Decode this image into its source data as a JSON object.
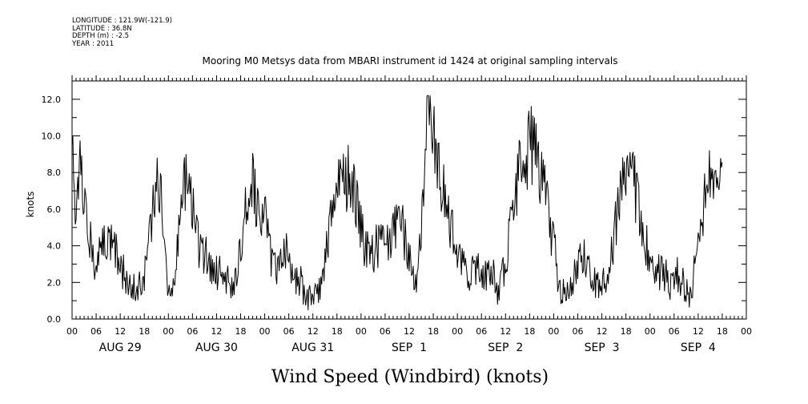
{
  "header": {
    "longitude": "LONGITUDE : 121.9W(-121.9)",
    "latitude": "LATITUDE : 36.8N",
    "depth": "DEPTH (m) : -2.5",
    "year": "YEAR : 2011"
  },
  "chart_data": {
    "type": "line",
    "title": "Mooring M0 Metsys data from MBARI instrument id 1424 at original sampling intervals",
    "ylabel": "knots",
    "xlabel": "Wind Speed (Windbird) (knots)",
    "ylim": [
      0,
      13
    ],
    "ytick_labels": [
      "0.0",
      "2.0",
      "4.0",
      "6.0",
      "8.0",
      "10.0",
      "12.0"
    ],
    "hour_tick_labels": [
      "00",
      "06",
      "12",
      "18",
      "00",
      "06",
      "12",
      "18",
      "00",
      "06",
      "12",
      "18",
      "00",
      "06",
      "12",
      "18",
      "00",
      "06",
      "12",
      "18",
      "00",
      "06",
      "12",
      "18",
      "00",
      "06",
      "12",
      "18",
      "00"
    ],
    "day_labels": [
      "AUG 29",
      "AUG 30",
      "AUG 31",
      "SEP  1",
      "SEP  2",
      "SEP  3",
      "SEP  4"
    ],
    "x_unit": "hours since 2011-08-29 00:00",
    "xlim": [
      0,
      168
    ],
    "series": [
      {
        "color": "#000000",
        "anchors": [
          [
            0,
            8.8
          ],
          [
            1,
            6.5
          ],
          [
            2,
            7.8
          ],
          [
            3,
            6.0
          ],
          [
            4,
            5.5
          ],
          [
            5,
            3.5
          ],
          [
            6,
            2.5
          ],
          [
            7,
            3.5
          ],
          [
            8,
            4.0
          ],
          [
            9,
            3.8
          ],
          [
            10,
            4.2
          ],
          [
            11,
            3.5
          ],
          [
            12,
            2.8
          ],
          [
            13,
            2.5
          ],
          [
            14,
            1.5
          ],
          [
            15,
            1.8
          ],
          [
            16,
            1.5
          ],
          [
            17,
            1.8
          ],
          [
            18,
            2.2
          ],
          [
            19,
            4.0
          ],
          [
            20,
            5.5
          ],
          [
            21,
            7.0
          ],
          [
            22,
            7.5
          ],
          [
            23,
            5.0
          ],
          [
            24,
            1.5
          ],
          [
            25,
            2.0
          ],
          [
            26,
            3.5
          ],
          [
            27,
            5.5
          ],
          [
            28,
            7.0
          ],
          [
            29,
            8.2
          ],
          [
            30,
            6.5
          ],
          [
            31,
            4.5
          ],
          [
            32,
            3.8
          ],
          [
            33,
            3.5
          ],
          [
            34,
            3.2
          ],
          [
            35,
            2.8
          ],
          [
            36,
            2.5
          ],
          [
            37,
            2.5
          ],
          [
            38,
            2.5
          ],
          [
            39,
            2.2
          ],
          [
            40,
            2.0
          ],
          [
            41,
            2.5
          ],
          [
            42,
            3.5
          ],
          [
            43,
            5.5
          ],
          [
            44,
            7.0
          ],
          [
            45,
            7.2
          ],
          [
            46,
            6.5
          ],
          [
            47,
            6.0
          ],
          [
            48,
            5.5
          ],
          [
            49,
            4.0
          ],
          [
            50,
            3.0
          ],
          [
            51,
            3.0
          ],
          [
            52,
            3.5
          ],
          [
            53,
            3.8
          ],
          [
            54,
            3.0
          ],
          [
            55,
            2.5
          ],
          [
            56,
            2.0
          ],
          [
            57,
            2.0
          ],
          [
            58,
            1.5
          ],
          [
            59,
            1.2
          ],
          [
            60,
            1.0
          ],
          [
            61,
            1.5
          ],
          [
            62,
            2.0
          ],
          [
            63,
            3.0
          ],
          [
            64,
            4.5
          ],
          [
            65,
            6.0
          ],
          [
            66,
            6.8
          ],
          [
            67,
            7.5
          ],
          [
            68,
            7.8
          ],
          [
            69,
            7.8
          ],
          [
            70,
            7.5
          ],
          [
            71,
            6.0
          ],
          [
            72,
            5.0
          ],
          [
            73,
            4.0
          ],
          [
            74,
            3.5
          ],
          [
            75,
            3.5
          ],
          [
            76,
            4.0
          ],
          [
            77,
            4.5
          ],
          [
            78,
            4.5
          ],
          [
            79,
            4.0
          ],
          [
            80,
            4.5
          ],
          [
            81,
            5.0
          ],
          [
            82,
            5.0
          ],
          [
            83,
            4.5
          ],
          [
            84,
            3.5
          ],
          [
            85,
            2.5
          ],
          [
            86,
            2.5
          ],
          [
            87,
            5.0
          ],
          [
            88,
            9.0
          ],
          [
            89,
            11.5
          ],
          [
            90,
            11.0
          ],
          [
            91,
            9.0
          ],
          [
            92,
            7.5
          ],
          [
            93,
            6.5
          ],
          [
            94,
            5.5
          ],
          [
            95,
            4.5
          ],
          [
            96,
            3.5
          ],
          [
            97,
            3.0
          ],
          [
            98,
            2.5
          ],
          [
            99,
            2.0
          ],
          [
            100,
            2.8
          ],
          [
            101,
            3.0
          ],
          [
            102,
            2.5
          ],
          [
            103,
            2.5
          ],
          [
            104,
            2.8
          ],
          [
            105,
            2.5
          ],
          [
            106,
            1.5
          ],
          [
            107,
            2.0
          ],
          [
            108,
            3.0
          ],
          [
            109,
            4.5
          ],
          [
            110,
            6.0
          ],
          [
            111,
            7.5
          ],
          [
            112,
            8.5
          ],
          [
            113,
            9.0
          ],
          [
            114,
            9.5
          ],
          [
            115,
            9.5
          ],
          [
            116,
            9.0
          ],
          [
            117,
            8.0
          ],
          [
            118,
            7.0
          ],
          [
            119,
            5.5
          ],
          [
            120,
            4.0
          ],
          [
            121,
            2.5
          ],
          [
            122,
            1.5
          ],
          [
            123,
            1.2
          ],
          [
            124,
            1.5
          ],
          [
            125,
            2.5
          ],
          [
            126,
            3.0
          ],
          [
            127,
            3.0
          ],
          [
            128,
            3.5
          ],
          [
            129,
            3.0
          ],
          [
            130,
            2.0
          ],
          [
            131,
            1.8
          ],
          [
            132,
            2.0
          ],
          [
            133,
            2.5
          ],
          [
            134,
            3.0
          ],
          [
            135,
            4.5
          ],
          [
            136,
            6.0
          ],
          [
            137,
            7.5
          ],
          [
            138,
            8.0
          ],
          [
            139,
            8.0
          ],
          [
            140,
            7.5
          ],
          [
            141,
            6.0
          ],
          [
            142,
            5.0
          ],
          [
            143,
            4.0
          ],
          [
            144,
            3.5
          ],
          [
            145,
            3.0
          ],
          [
            146,
            2.5
          ],
          [
            147,
            2.5
          ],
          [
            148,
            2.5
          ],
          [
            149,
            2.0
          ],
          [
            150,
            2.5
          ],
          [
            151,
            2.5
          ],
          [
            152,
            2.0
          ],
          [
            153,
            1.5
          ],
          [
            154,
            1.5
          ],
          [
            155,
            2.5
          ],
          [
            156,
            4.5
          ],
          [
            157,
            6.0
          ],
          [
            158,
            7.0
          ],
          [
            159,
            7.5
          ],
          [
            160,
            8.5
          ],
          [
            161,
            9.5
          ],
          [
            162,
            8.0
          ]
        ]
      }
    ]
  }
}
